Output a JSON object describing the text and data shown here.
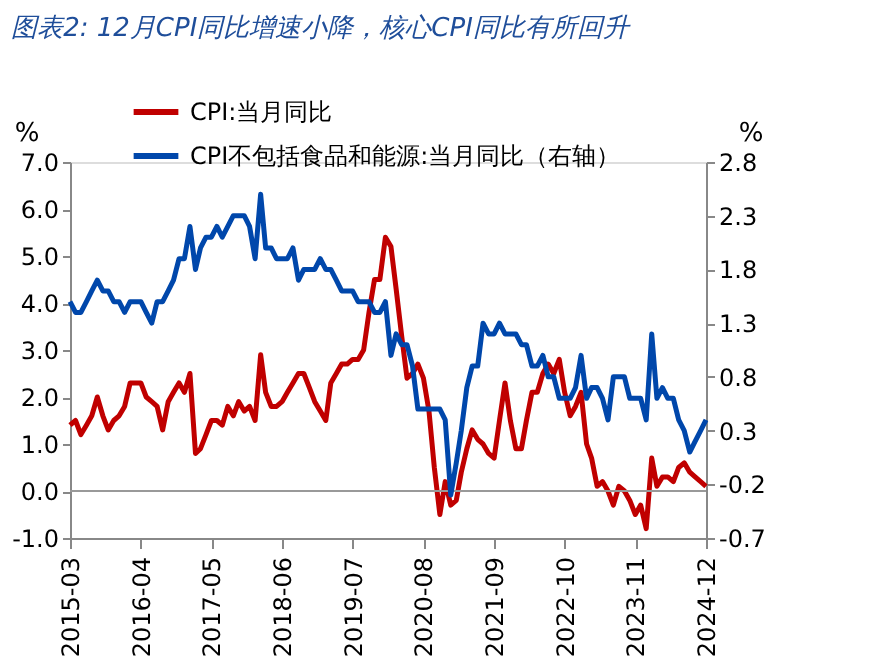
{
  "chart_data": {
    "type": "line",
    "title": "图表2:  12月CPI同比增速小降，核心CPI同比有所回升",
    "ylabel": "%",
    "y2label": "%",
    "x": [
      "2015-03",
      "2015-04",
      "2015-05",
      "2015-06",
      "2015-07",
      "2015-08",
      "2015-09",
      "2015-10",
      "2015-11",
      "2015-12",
      "2016-01",
      "2016-02",
      "2016-03",
      "2016-04",
      "2016-05",
      "2016-06",
      "2016-07",
      "2016-08",
      "2016-09",
      "2016-10",
      "2016-11",
      "2016-12",
      "2017-01",
      "2017-02",
      "2017-03",
      "2017-04",
      "2017-05",
      "2017-06",
      "2017-07",
      "2017-08",
      "2017-09",
      "2017-10",
      "2017-11",
      "2017-12",
      "2018-01",
      "2018-02",
      "2018-03",
      "2018-04",
      "2018-05",
      "2018-06",
      "2018-07",
      "2018-08",
      "2018-09",
      "2018-10",
      "2018-11",
      "2018-12",
      "2019-01",
      "2019-02",
      "2019-03",
      "2019-04",
      "2019-05",
      "2019-06",
      "2019-07",
      "2019-08",
      "2019-09",
      "2019-10",
      "2019-11",
      "2019-12",
      "2020-01",
      "2020-02",
      "2020-03",
      "2020-04",
      "2020-05",
      "2020-06",
      "2020-07",
      "2020-08",
      "2020-09",
      "2020-10",
      "2020-11",
      "2020-12",
      "2021-01",
      "2021-02",
      "2021-03",
      "2021-04",
      "2021-05",
      "2021-06",
      "2021-07",
      "2021-08",
      "2021-09",
      "2021-10",
      "2021-11",
      "2021-12",
      "2022-01",
      "2022-02",
      "2022-03",
      "2022-04",
      "2022-05",
      "2022-06",
      "2022-07",
      "2022-08",
      "2022-09",
      "2022-10",
      "2022-11",
      "2022-12",
      "2023-01",
      "2023-02",
      "2023-03",
      "2023-04",
      "2023-05",
      "2023-06",
      "2023-07",
      "2023-08",
      "2023-09",
      "2023-10",
      "2023-11",
      "2023-12",
      "2024-01",
      "2024-02",
      "2024-03",
      "2024-04",
      "2024-05",
      "2024-06",
      "2024-07",
      "2024-08",
      "2024-09",
      "2024-10",
      "2024-11",
      "2024-12"
    ],
    "series": [
      {
        "name": "CPI:当月同比",
        "color": "#c00000",
        "values": [
          1.4,
          1.5,
          1.2,
          1.4,
          1.6,
          2.0,
          1.6,
          1.3,
          1.5,
          1.6,
          1.8,
          2.3,
          2.3,
          2.3,
          2.0,
          1.9,
          1.8,
          1.3,
          1.9,
          2.1,
          2.3,
          2.1,
          2.5,
          0.8,
          0.9,
          1.2,
          1.5,
          1.5,
          1.4,
          1.8,
          1.6,
          1.9,
          1.7,
          1.8,
          1.5,
          2.9,
          2.1,
          1.8,
          1.8,
          1.9,
          2.1,
          2.3,
          2.5,
          2.5,
          2.2,
          1.9,
          1.7,
          1.5,
          2.3,
          2.5,
          2.7,
          2.7,
          2.8,
          2.8,
          3.0,
          3.8,
          4.5,
          4.5,
          5.4,
          5.2,
          4.3,
          3.3,
          2.4,
          2.5,
          2.7,
          2.4,
          1.7,
          0.5,
          -0.5,
          0.2,
          -0.3,
          -0.2,
          0.4,
          0.9,
          1.3,
          1.1,
          1.0,
          0.8,
          0.7,
          1.5,
          2.3,
          1.5,
          0.9,
          0.9,
          1.5,
          2.1,
          2.1,
          2.5,
          2.7,
          2.5,
          2.8,
          2.1,
          1.6,
          1.8,
          2.1,
          1.0,
          0.7,
          0.1,
          0.2,
          0.0,
          -0.3,
          0.1,
          0.0,
          -0.2,
          -0.5,
          -0.3,
          -0.8,
          0.7,
          0.1,
          0.3,
          0.3,
          0.2,
          0.5,
          0.6,
          0.4,
          0.3,
          0.2,
          0.1
        ]
      },
      {
        "name": "CPI不包括食品和能源:当月同比（右轴）",
        "color": "#0047ab",
        "axis": "y2",
        "values": [
          1.5,
          1.4,
          1.4,
          1.5,
          1.6,
          1.7,
          1.6,
          1.6,
          1.5,
          1.5,
          1.4,
          1.5,
          1.5,
          1.5,
          1.4,
          1.3,
          1.5,
          1.5,
          1.6,
          1.7,
          1.9,
          1.9,
          2.2,
          1.8,
          2.0,
          2.1,
          2.1,
          2.2,
          2.1,
          2.2,
          2.3,
          2.3,
          2.3,
          2.2,
          1.9,
          2.5,
          2.0,
          2.0,
          1.9,
          1.9,
          1.9,
          2.0,
          1.7,
          1.8,
          1.8,
          1.8,
          1.9,
          1.8,
          1.8,
          1.7,
          1.6,
          1.6,
          1.6,
          1.5,
          1.5,
          1.5,
          1.4,
          1.4,
          1.5,
          1.0,
          1.2,
          1.1,
          1.1,
          0.9,
          0.5,
          0.5,
          0.5,
          0.5,
          0.5,
          0.4,
          -0.3,
          0.0,
          0.3,
          0.7,
          0.9,
          0.9,
          1.3,
          1.2,
          1.2,
          1.3,
          1.2,
          1.2,
          1.2,
          1.1,
          1.1,
          0.9,
          0.9,
          1.0,
          0.8,
          0.8,
          0.6,
          0.6,
          0.6,
          0.7,
          1.0,
          0.6,
          0.7,
          0.7,
          0.6,
          0.4,
          0.8,
          0.8,
          0.8,
          0.6,
          0.6,
          0.6,
          0.4,
          1.2,
          0.6,
          0.7,
          0.6,
          0.6,
          0.4,
          0.3,
          0.1,
          0.2,
          0.3,
          0.4
        ]
      }
    ],
    "xlim": [
      "2015-03",
      "2024-12"
    ],
    "xticks": [
      "2015-03",
      "2016-04",
      "2017-05",
      "2018-06",
      "2019-07",
      "2020-08",
      "2021-09",
      "2022-10",
      "2023-11",
      "2024-12"
    ],
    "ylim": [
      -1.0,
      7.0
    ],
    "yticks": [
      {
        "value": -1,
        "label": "-1.0"
      },
      {
        "value": 0,
        "label": "0.0"
      },
      {
        "value": 1,
        "label": "1.0"
      },
      {
        "value": 2,
        "label": "2.0"
      },
      {
        "value": 3,
        "label": "3.0"
      },
      {
        "value": 4,
        "label": "4.0"
      },
      {
        "value": 5,
        "label": "5.0"
      },
      {
        "value": 6,
        "label": "6.0"
      },
      {
        "value": 7,
        "label": "7.0"
      }
    ],
    "y2lim": [
      -0.7,
      2.8
    ],
    "y2ticks": [
      -0.7,
      -0.2,
      0.3,
      0.8,
      1.3,
      1.8,
      2.3,
      2.8
    ],
    "ref_lines": [
      {
        "axis": "y",
        "value": 0,
        "color": "#999999"
      }
    ],
    "legend": "top",
    "grid": false
  }
}
